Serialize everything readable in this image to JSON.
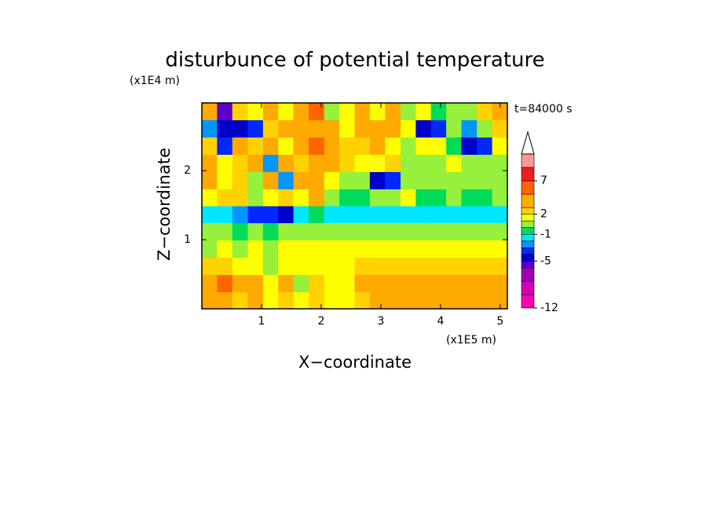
{
  "chart_data": {
    "type": "contourf",
    "title": "disturbunce of potential temperature",
    "xlabel": "X−coordinate",
    "ylabel": "Z−coordinate",
    "xunit": "(x1E5 m)",
    "yunit": "(x1E4 m)",
    "annotation": "t=84000 s",
    "xlim": [
      0,
      5.12
    ],
    "ylim": [
      0,
      2.98
    ],
    "xticks": [
      1,
      2,
      3,
      4,
      5
    ],
    "yticks": [
      1,
      2
    ],
    "x": [
      0.13,
      0.38,
      0.64,
      0.9,
      1.15,
      1.41,
      1.66,
      1.92,
      2.18,
      2.43,
      2.69,
      2.94,
      3.2,
      3.46,
      3.71,
      3.97,
      4.22,
      4.48,
      4.74,
      4.99
    ],
    "y": [
      0.12,
      0.37,
      0.62,
      0.87,
      1.12,
      1.37,
      1.61,
      1.86,
      2.11,
      2.36,
      2.61,
      2.86
    ],
    "values": [
      [
        3,
        3,
        2,
        3,
        1,
        2,
        1,
        2,
        1,
        1,
        2,
        3,
        3,
        3,
        3,
        3,
        3,
        3,
        3,
        3
      ],
      [
        4,
        5,
        3,
        4,
        1,
        3,
        0.5,
        2,
        1,
        1.5,
        3,
        4,
        3,
        4,
        3,
        4,
        4,
        3,
        4,
        3
      ],
      [
        2,
        2.5,
        1,
        1.5,
        0.5,
        1.5,
        1,
        1.5,
        1.5,
        1.5,
        2,
        2.5,
        2.5,
        2.5,
        2.5,
        2.5,
        2.5,
        2.5,
        2.5,
        2.5
      ],
      [
        0.5,
        1,
        0.5,
        1,
        0.5,
        1,
        1,
        1.5,
        1.5,
        1.5,
        1.5,
        1.5,
        1.5,
        1.5,
        1.5,
        1.5,
        1.5,
        1.5,
        1.5,
        1.5
      ],
      [
        0.5,
        0.5,
        -0.5,
        0.5,
        -0.5,
        0.5,
        0.5,
        0.5,
        0.5,
        0.5,
        0.5,
        0.5,
        0.5,
        0.5,
        0.5,
        0.5,
        0.5,
        0.5,
        0.5,
        0.5
      ],
      [
        -1.5,
        -1.5,
        -2.5,
        -3.5,
        -3.5,
        -4.5,
        -1.5,
        -0.5,
        -1.5,
        -1.5,
        -1.5,
        -1.5,
        -1.5,
        -1.5,
        -1.5,
        -1.5,
        -1.5,
        -1.5,
        -1.5,
        -1.5
      ],
      [
        1.5,
        2.5,
        2.5,
        0.5,
        1.5,
        2.5,
        1.5,
        3,
        0.5,
        -0.5,
        -0.5,
        0.5,
        0.5,
        1.5,
        -0.5,
        -0.5,
        0.5,
        -0.5,
        -0.5,
        0.5
      ],
      [
        3,
        1.5,
        2.5,
        0.5,
        4,
        -2.5,
        3,
        4,
        1.5,
        0.5,
        0.5,
        -4.5,
        -3.5,
        0.5,
        0.5,
        0.5,
        0.5,
        0.5,
        0.5,
        0.5
      ],
      [
        4,
        1.5,
        2.5,
        3,
        -2.5,
        4,
        2.5,
        4,
        3,
        2.5,
        1.5,
        1.5,
        2.5,
        0.5,
        0.5,
        0.5,
        1.5,
        0.5,
        0.5,
        0.5
      ],
      [
        2.5,
        -3.5,
        4,
        2.5,
        4,
        1.5,
        3,
        6,
        4,
        2.5,
        2.5,
        3,
        1.5,
        0.5,
        1.5,
        1.5,
        -0.5,
        -4.5,
        -3.5,
        1.5
      ],
      [
        -2.5,
        -4.5,
        -4.5,
        -3.5,
        2.5,
        3,
        3,
        4,
        3,
        1.5,
        4,
        3,
        4,
        1.5,
        -4.5,
        -3.5,
        0.5,
        -2.5,
        0.5,
        2.5
      ],
      [
        3,
        -5.5,
        2.5,
        1.5,
        3,
        1.5,
        3,
        6,
        0.5,
        1.5,
        3,
        1.5,
        3,
        0.5,
        1.5,
        -0.5,
        0.5,
        0.5,
        2.5,
        4
      ]
    ],
    "levels": [
      -12,
      -10,
      -8,
      -6,
      -5,
      -4,
      -3,
      -2,
      -1,
      0,
      1,
      2,
      3,
      5,
      7,
      9,
      11
    ],
    "colors": [
      "#ff00b4",
      "#d200b4",
      "#a000b4",
      "#5a00c8",
      "#0000c8",
      "#0028ff",
      "#0096ff",
      "#00e6ff",
      "#00dc5a",
      "#96f03c",
      "#ffff00",
      "#ffd200",
      "#ffaa00",
      "#ff6400",
      "#f01e1e",
      "#ff9696"
    ],
    "extend_color": "#ffffff",
    "cbar_ticks": [
      -12,
      -5,
      -1,
      2,
      7
    ]
  }
}
